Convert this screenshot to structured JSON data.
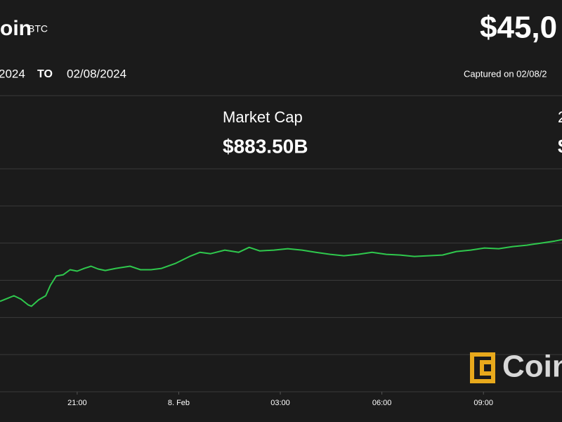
{
  "header": {
    "name": "oin",
    "symbol": "BTC",
    "price": "$45,0"
  },
  "range": {
    "from": "2024",
    "to_label": "TO",
    "to": "02/08/2024",
    "captured": "Captured on 02/08/2"
  },
  "stats": {
    "label": "Market Cap",
    "value": "$883.50B",
    "right_label": "2",
    "right_value": "$"
  },
  "chart_data": {
    "type": "line",
    "color": "#2fc84d",
    "grid": true,
    "watermark": "Coin",
    "x": [
      18.72,
      18.93,
      19.13,
      19.34,
      19.55,
      19.65,
      19.86,
      20.07,
      20.21,
      20.38,
      20.59,
      20.79,
      21.0,
      21.21,
      21.41,
      21.62,
      21.83,
      22.14,
      22.56,
      22.87,
      23.18,
      23.49,
      23.9,
      24.32,
      24.63,
      24.94,
      25.36,
      25.77,
      26.08,
      26.39,
      26.81,
      27.22,
      27.64,
      28.05,
      28.47,
      28.88,
      29.3,
      29.71,
      30.13,
      30.54,
      30.96,
      31.37,
      31.79,
      32.2,
      32.62,
      33.03,
      33.45,
      33.86,
      34.28,
      34.69,
      35.11,
      35.32
    ],
    "values": [
      44217,
      44255,
      44292,
      44245,
      44170,
      44151,
      44236,
      44292,
      44434,
      44557,
      44575,
      44642,
      44623,
      44660,
      44689,
      44651,
      44632,
      44660,
      44689,
      44642,
      44642,
      44660,
      44726,
      44821,
      44877,
      44858,
      44906,
      44877,
      44943,
      44896,
      44906,
      44925,
      44906,
      44877,
      44849,
      44830,
      44849,
      44877,
      44849,
      44840,
      44821,
      44830,
      44840,
      44887,
      44906,
      44934,
      44925,
      44953,
      44972,
      45000,
      45028,
      45047
    ],
    "xlim": [
      18.72,
      35.32
    ],
    "xticks": [
      {
        "value": 21,
        "label": "21:00"
      },
      {
        "value": 24,
        "label": "8. Feb"
      },
      {
        "value": 27,
        "label": "03:00"
      },
      {
        "value": 30,
        "label": "06:00"
      },
      {
        "value": 33,
        "label": "09:00"
      }
    ],
    "ylim": [
      43000,
      46000
    ],
    "yticks": [
      43000,
      43500,
      44000,
      44500,
      45000,
      45500,
      46000
    ]
  }
}
